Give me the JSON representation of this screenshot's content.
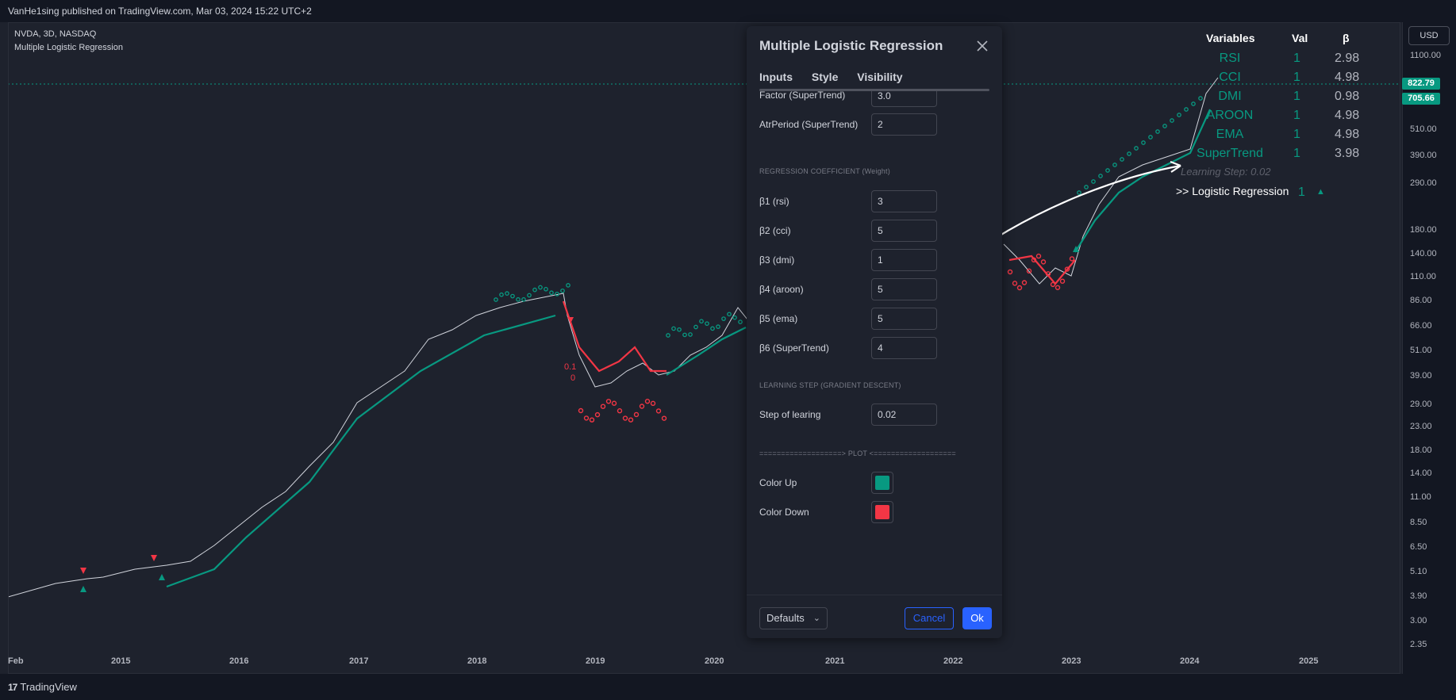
{
  "header": {
    "publish_text": "VanHe1sing published on TradingView.com, Mar 03, 2024 15:22 UTC+2"
  },
  "chart": {
    "symbol_line": "NVDA, 3D, NASDAQ",
    "indicator_name": "Multiple Logistic Regression",
    "currency": "USD",
    "price_labels": [
      "1100.00",
      "822.79",
      "705.66",
      "510.00",
      "390.00",
      "290.00",
      "180.00",
      "140.00",
      "110.00",
      "86.00",
      "66.00",
      "51.00",
      "39.00",
      "29.00",
      "23.00",
      "18.00",
      "14.00",
      "11.00",
      "8.50",
      "6.50",
      "5.10",
      "3.90",
      "3.00",
      "2.35"
    ],
    "last_price": "822.79",
    "indicator_price": "705.66",
    "time_labels": [
      "Feb",
      "2015",
      "2016",
      "2017",
      "2018",
      "2019",
      "2020",
      "2021",
      "2022",
      "2023",
      "2024",
      "2025"
    ],
    "annotation_value": "0.1",
    "annotation_zero": "0",
    "colors": {
      "up": "#089981",
      "down": "#f23645",
      "bg": "#1e222d"
    }
  },
  "variables_table": {
    "headers": {
      "variables": "Variables",
      "val": "Val",
      "beta": "β"
    },
    "rows": [
      {
        "name": "RSI",
        "val": "1",
        "beta": "2.98"
      },
      {
        "name": "CCI",
        "val": "1",
        "beta": "4.98"
      },
      {
        "name": "DMI",
        "val": "1",
        "beta": "0.98"
      },
      {
        "name": "AROON",
        "val": "1",
        "beta": "4.98"
      },
      {
        "name": "EMA",
        "val": "1",
        "beta": "4.98"
      },
      {
        "name": "SuperTrend",
        "val": "1",
        "beta": "3.98"
      }
    ],
    "learning_step": "Learning Step: 0.02",
    "result_label": ">> Logistic Regression",
    "result_val": "1",
    "result_icon": "up-triangle-icon"
  },
  "dialog": {
    "title": "Multiple Logistic Regression",
    "tabs": [
      "Inputs",
      "Style",
      "Visibility"
    ],
    "partial_row": {
      "label": "Factor (SuperTrend)",
      "value": "3.0"
    },
    "atr_row": {
      "label": "AtrPeriod (SuperTrend)",
      "value": "2"
    },
    "section_coeff": "REGRESSION COEFFICIENT (Weight)",
    "coefficients": [
      {
        "label": "β1 (rsi)",
        "value": "3"
      },
      {
        "label": "β2 (cci)",
        "value": "5"
      },
      {
        "label": "β3 (dmi)",
        "value": "1"
      },
      {
        "label": "β4 (aroon)",
        "value": "5"
      },
      {
        "label": "β5 (ema)",
        "value": "5"
      },
      {
        "label": "β6 (SuperTrend)",
        "value": "4"
      }
    ],
    "section_learning": "LEARNING STEP (GRADIENT DESCENT)",
    "step_row": {
      "label": "Step of learing",
      "value": "0.02"
    },
    "section_plot": "===================> PLOT <===================",
    "color_up": {
      "label": "Color Up",
      "color": "#089981"
    },
    "color_down": {
      "label": "Color Down",
      "color": "#f23645"
    },
    "footer": {
      "defaults": "Defaults",
      "cancel": "Cancel",
      "ok": "Ok"
    }
  },
  "footer": {
    "brand": "TradingView",
    "logo": "17"
  }
}
